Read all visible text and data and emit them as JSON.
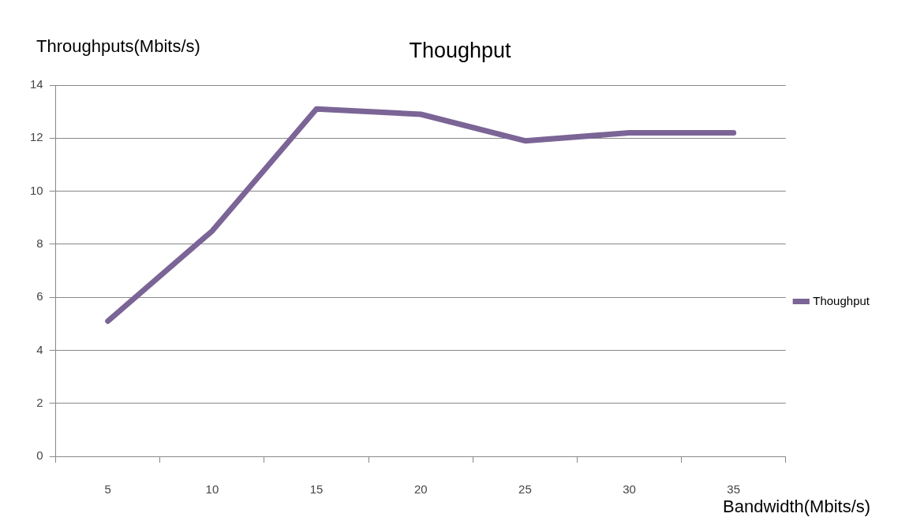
{
  "chart_data": {
    "type": "line",
    "title": "Thoughput",
    "xlabel": "Bandwidth(Mbits/s)",
    "ylabel": "Throughputs(Mbits/s)",
    "categories": [
      "5",
      "10",
      "15",
      "20",
      "25",
      "30",
      "35"
    ],
    "series": [
      {
        "name": "Thoughput",
        "color": "#7b6496",
        "values": [
          5.1,
          8.5,
          13.1,
          12.9,
          11.9,
          12.2,
          12.2
        ]
      }
    ],
    "ylim": [
      0,
      14
    ],
    "yticks": [
      0,
      2,
      4,
      6,
      8,
      10,
      12,
      14
    ],
    "grid": "y",
    "legend": "right",
    "marker": "none",
    "line_style": "solid"
  }
}
